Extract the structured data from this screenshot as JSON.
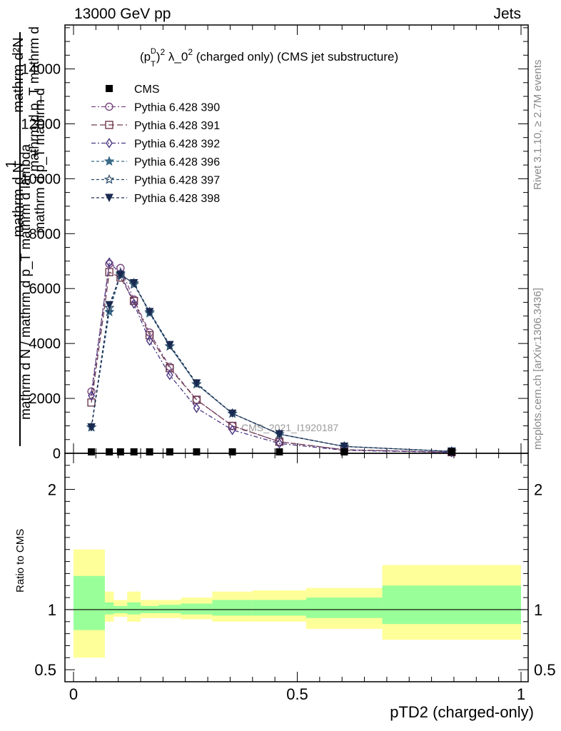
{
  "header": {
    "left": "13000 GeV pp",
    "right": "Jets"
  },
  "side": {
    "rivet": "Rivet 3.1.10, ≥ 2.7M events",
    "mcplots": "mcplots.cern.ch [arXiv:1306.3436]"
  },
  "chart_data": [
    {
      "type": "line",
      "title_parts": [
        "(p",
        "T",
        "D",
        ")",
        "2",
        " λ_0",
        "2",
        " (charged only) (CMS jet substructure)"
      ],
      "ylabel_main": {
        "numerator": "mathrm d²N",
        "denominator": "mathrm d p_T mathrm d lambda",
        "fraction_line2": "mathrm d N / mathrm d p_T mathrm d lambda",
        "one": "1",
        "partial_top": "mathrm d N",
        "mid": "mathrm d p_T mathrm d"
      },
      "watermark": "CMS_2021_I1920187",
      "xlim": [
        0,
        1
      ],
      "ylim": [
        0,
        15600
      ],
      "y_ticks": [
        0,
        2000,
        4000,
        6000,
        8000,
        10000,
        12000,
        14000
      ],
      "x": [
        0.04,
        0.08,
        0.105,
        0.135,
        0.17,
        0.215,
        0.275,
        0.355,
        0.46,
        0.605,
        0.845
      ],
      "cms": [
        0,
        0,
        0,
        0,
        0,
        0,
        0,
        0,
        0,
        0,
        0
      ],
      "series": [
        {
          "name": "Pythia 6.428 390",
          "marker": "circle-open",
          "color": "#7a4a80",
          "dash": "6,3,2,3",
          "values": [
            2250,
            6900,
            6750,
            5600,
            4400,
            3150,
            1950,
            1000,
            420,
            130,
            40
          ]
        },
        {
          "name": "Pythia 6.428 391",
          "marker": "square-open",
          "color": "#6e3a4e",
          "dash": "8,4",
          "values": [
            1850,
            6600,
            6400,
            5550,
            4300,
            3100,
            1950,
            1000,
            420,
            130,
            40
          ]
        },
        {
          "name": "Pythia 6.428 392",
          "marker": "diamond-open",
          "color": "#4a3480",
          "dash": "6,3,2,3",
          "values": [
            2100,
            6950,
            6550,
            5450,
            4100,
            2850,
            1650,
            850,
            360,
            110,
            35
          ]
        },
        {
          "name": "Pythia 6.428 396",
          "marker": "star-filled",
          "color": "#3a6a88",
          "dash": "4,3",
          "values": [
            950,
            5150,
            6500,
            6200,
            5100,
            3900,
            2520,
            1450,
            700,
            250,
            70
          ]
        },
        {
          "name": "Pythia 6.428 397",
          "marker": "star-open",
          "color": "#2a4a6a",
          "dash": "4,3",
          "values": [
            950,
            5300,
            6550,
            6150,
            5150,
            3900,
            2520,
            1450,
            700,
            250,
            70
          ]
        },
        {
          "name": "Pythia 6.428 398",
          "marker": "triangle-down-filled",
          "color": "#1a2a50",
          "dash": "4,3",
          "values": [
            950,
            5400,
            6500,
            6200,
            5150,
            3950,
            2550,
            1450,
            700,
            250,
            70
          ]
        }
      ],
      "legend": {
        "placement": "top-left",
        "entries": [
          "CMS",
          "Pythia 6.428 390",
          "Pythia 6.428 391",
          "Pythia 6.428 392",
          "Pythia 6.428 396",
          "Pythia 6.428 397",
          "Pythia 6.428 398"
        ]
      }
    },
    {
      "type": "area",
      "ylabel": "Ratio to CMS",
      "xlabel": "pTD2 (charged-only)",
      "xlim": [
        0,
        1
      ],
      "ylim": [
        0.4,
        2.3
      ],
      "y_ticks": [
        0.5,
        1,
        2
      ],
      "y_tick_labels": [
        "0.5",
        "1",
        "2"
      ],
      "x_ticks": [
        0,
        0.5,
        1
      ],
      "x_tick_labels": [
        "0",
        "0.5",
        "1"
      ],
      "bins": [
        [
          0.0,
          0.07
        ],
        [
          0.07,
          0.09
        ],
        [
          0.09,
          0.12
        ],
        [
          0.12,
          0.15
        ],
        [
          0.15,
          0.19
        ],
        [
          0.19,
          0.24
        ],
        [
          0.24,
          0.31
        ],
        [
          0.31,
          0.4
        ],
        [
          0.4,
          0.52
        ],
        [
          0.52,
          0.69
        ],
        [
          0.69,
          1.0
        ]
      ],
      "band_yellow": [
        [
          0.6,
          1.5
        ],
        [
          0.9,
          1.15
        ],
        [
          0.94,
          1.08
        ],
        [
          0.9,
          1.15
        ],
        [
          0.93,
          1.08
        ],
        [
          0.93,
          1.08
        ],
        [
          0.92,
          1.1
        ],
        [
          0.9,
          1.15
        ],
        [
          0.9,
          1.16
        ],
        [
          0.84,
          1.18
        ],
        [
          0.75,
          1.37
        ]
      ],
      "band_green": [
        [
          0.83,
          1.28
        ],
        [
          0.96,
          1.06
        ],
        [
          0.97,
          1.03
        ],
        [
          0.96,
          1.06
        ],
        [
          0.97,
          1.03
        ],
        [
          0.97,
          1.04
        ],
        [
          0.96,
          1.05
        ],
        [
          0.95,
          1.08
        ],
        [
          0.95,
          1.08
        ],
        [
          0.93,
          1.1
        ],
        [
          0.88,
          1.2
        ]
      ],
      "reference": 1,
      "colors": {
        "yellow": "#ffff99",
        "green": "#99ff99"
      }
    }
  ]
}
